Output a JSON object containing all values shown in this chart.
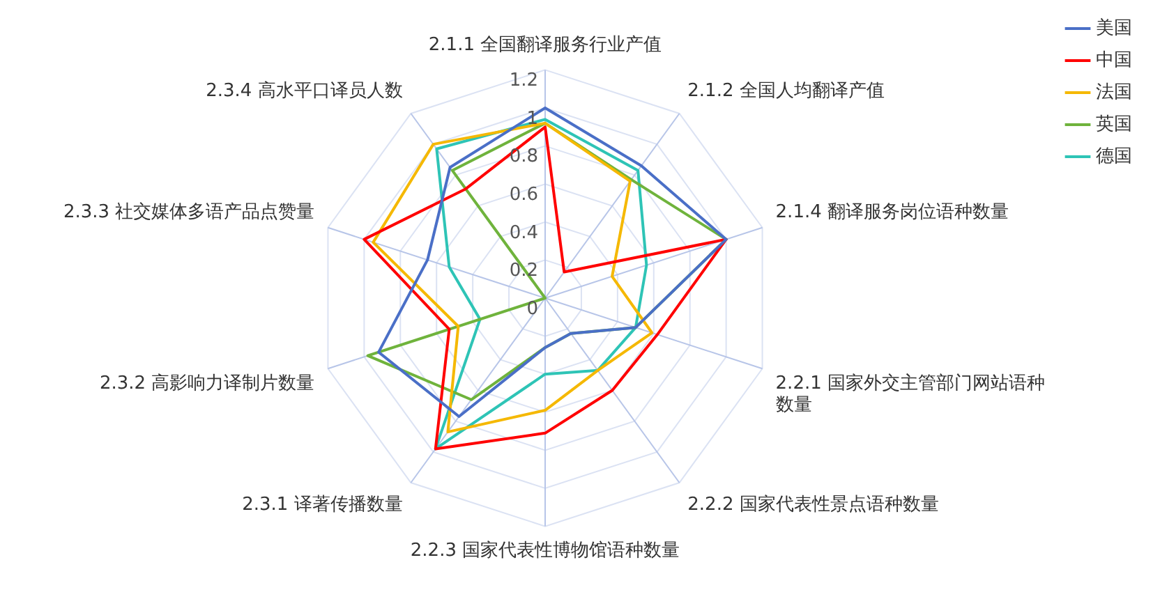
{
  "chart_data": {
    "type": "radar",
    "categories": [
      "2.1.1 全国翻译服务行业产值",
      "2.1.2 全国人均翻译产值",
      "2.1.4 翻译服务岗位语种数量",
      "2.2.1 国家外交主管部门网站语种数量",
      "2.2.2 国家代表性景点语种数量",
      "2.2.3 国家代表性博物馆语种数量",
      "2.3.1 译著传播数量",
      "2.3.2 高影响力译制片数量",
      "2.3.3 社交媒体多语产品点赞量",
      "2.3.4 高水平口译员人数"
    ],
    "series": [
      {
        "name": "美国",
        "color": "#4a6fc7",
        "values": [
          1.0,
          0.86,
          1.0,
          0.5,
          0.23,
          0.26,
          0.77,
          0.92,
          0.65,
          0.85
        ]
      },
      {
        "name": "中国",
        "color": "#ff0000",
        "values": [
          0.9,
          0.17,
          1.0,
          0.62,
          0.6,
          0.71,
          0.98,
          0.53,
          1.0,
          0.71
        ]
      },
      {
        "name": "法国",
        "color": "#f5b800",
        "values": [
          0.92,
          0.76,
          0.37,
          0.59,
          0.47,
          0.59,
          0.87,
          0.48,
          0.95,
          1.0
        ]
      },
      {
        "name": "英国",
        "color": "#6fb33c",
        "values": [
          0.92,
          0.77,
          1.0,
          0.5,
          0.23,
          0.26,
          0.66,
          0.98,
          0,
          0.83
        ]
      },
      {
        "name": "德国",
        "color": "#2ec4b6",
        "values": [
          0.94,
          0.83,
          0.56,
          0.5,
          0.47,
          0.4,
          0.98,
          0.36,
          0.53,
          0.97
        ]
      }
    ],
    "ylim": [
      0,
      1.2
    ],
    "yticks": [
      0,
      0.2,
      0.4,
      0.6,
      0.8,
      1,
      1.2
    ],
    "grid": true,
    "legend": "top right",
    "marker": "none"
  }
}
